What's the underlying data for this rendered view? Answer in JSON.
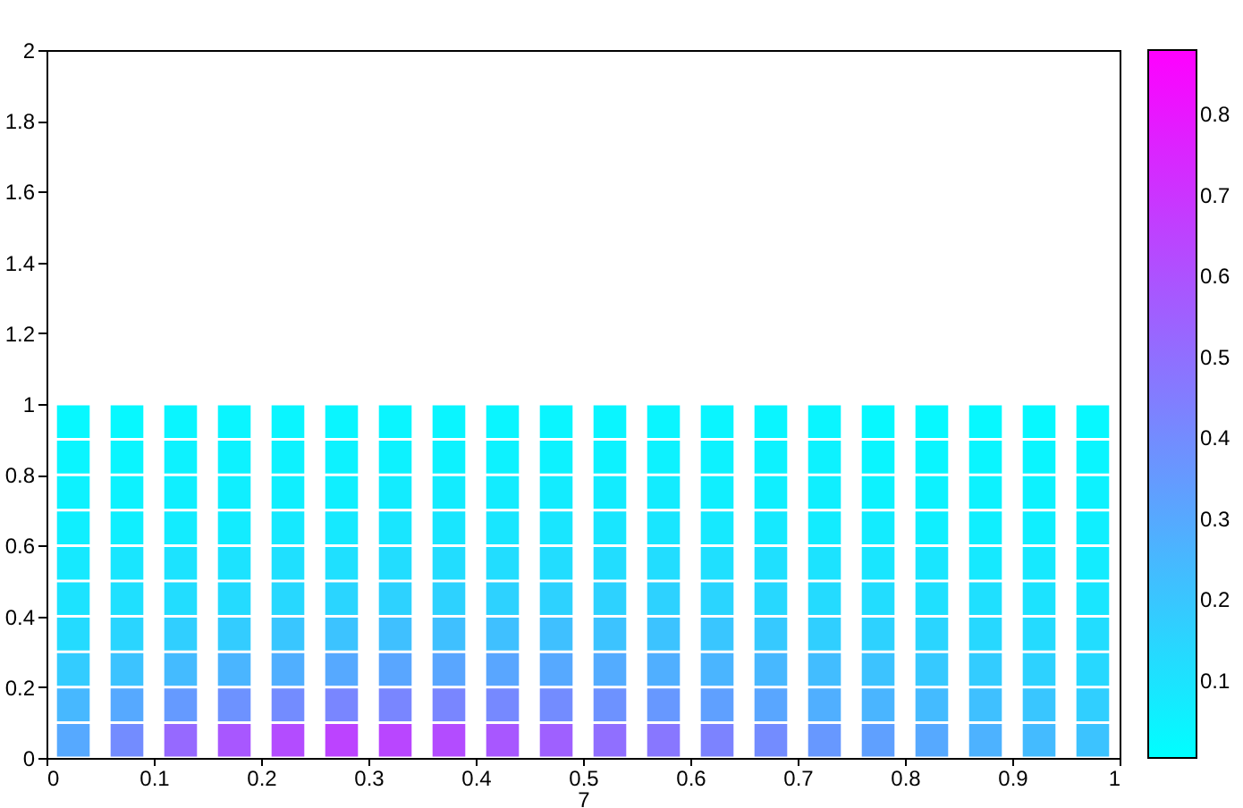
{
  "chart_data": {
    "type": "scatter",
    "xlabel": "7",
    "marker": "square",
    "x": [
      0.025,
      0.075,
      0.125,
      0.175,
      0.225,
      0.275,
      0.325,
      0.375,
      0.425,
      0.475,
      0.525,
      0.575,
      0.625,
      0.675,
      0.725,
      0.775,
      0.825,
      0.875,
      0.925,
      0.975,
      0.025,
      0.075,
      0.125,
      0.175,
      0.225,
      0.275,
      0.325,
      0.375,
      0.425,
      0.475,
      0.525,
      0.575,
      0.625,
      0.675,
      0.725,
      0.775,
      0.825,
      0.875,
      0.925,
      0.975,
      0.025,
      0.075,
      0.125,
      0.175,
      0.225,
      0.275,
      0.325,
      0.375,
      0.425,
      0.475,
      0.525,
      0.575,
      0.625,
      0.675,
      0.725,
      0.775,
      0.825,
      0.875,
      0.925,
      0.975,
      0.025,
      0.075,
      0.125,
      0.175,
      0.225,
      0.275,
      0.325,
      0.375,
      0.425,
      0.475,
      0.525,
      0.575,
      0.625,
      0.675,
      0.725,
      0.775,
      0.825,
      0.875,
      0.925,
      0.975,
      0.025,
      0.075,
      0.125,
      0.175,
      0.225,
      0.275,
      0.325,
      0.375,
      0.425,
      0.475,
      0.525,
      0.575,
      0.625,
      0.675,
      0.725,
      0.775,
      0.825,
      0.875,
      0.925,
      0.975,
      0.025,
      0.075,
      0.125,
      0.175,
      0.225,
      0.275,
      0.325,
      0.375,
      0.425,
      0.475,
      0.525,
      0.575,
      0.625,
      0.675,
      0.725,
      0.775,
      0.825,
      0.875,
      0.925,
      0.975,
      0.025,
      0.075,
      0.125,
      0.175,
      0.225,
      0.275,
      0.325,
      0.375,
      0.425,
      0.475,
      0.525,
      0.575,
      0.625,
      0.675,
      0.725,
      0.775,
      0.825,
      0.875,
      0.925,
      0.975,
      0.025,
      0.075,
      0.125,
      0.175,
      0.225,
      0.275,
      0.325,
      0.375,
      0.425,
      0.475,
      0.525,
      0.575,
      0.625,
      0.675,
      0.725,
      0.775,
      0.825,
      0.875,
      0.925,
      0.975,
      0.025,
      0.075,
      0.125,
      0.175,
      0.225,
      0.275,
      0.325,
      0.375,
      0.425,
      0.475,
      0.525,
      0.575,
      0.625,
      0.675,
      0.725,
      0.775,
      0.825,
      0.875,
      0.925,
      0.975,
      0.025,
      0.075,
      0.125,
      0.175,
      0.225,
      0.275,
      0.325,
      0.375,
      0.425,
      0.475,
      0.525,
      0.575,
      0.625,
      0.675,
      0.725,
      0.775,
      0.825,
      0.875,
      0.925,
      0.975
    ],
    "values": [
      0.05,
      0.05,
      0.05,
      0.05,
      0.05,
      0.05,
      0.05,
      0.05,
      0.05,
      0.05,
      0.05,
      0.05,
      0.05,
      0.05,
      0.05,
      0.05,
      0.05,
      0.05,
      0.05,
      0.05,
      0.15,
      0.15,
      0.15,
      0.15,
      0.15,
      0.15,
      0.15,
      0.15,
      0.15,
      0.15,
      0.15,
      0.15,
      0.15,
      0.15,
      0.15,
      0.15,
      0.15,
      0.15,
      0.15,
      0.15,
      0.25,
      0.25,
      0.25,
      0.25,
      0.25,
      0.25,
      0.25,
      0.25,
      0.25,
      0.25,
      0.25,
      0.25,
      0.25,
      0.25,
      0.25,
      0.25,
      0.25,
      0.25,
      0.25,
      0.25,
      0.35,
      0.35,
      0.35,
      0.35,
      0.35,
      0.35,
      0.35,
      0.35,
      0.35,
      0.35,
      0.35,
      0.35,
      0.35,
      0.35,
      0.35,
      0.35,
      0.35,
      0.35,
      0.35,
      0.35,
      0.45,
      0.45,
      0.45,
      0.45,
      0.45,
      0.45,
      0.45,
      0.45,
      0.45,
      0.45,
      0.45,
      0.45,
      0.45,
      0.45,
      0.45,
      0.45,
      0.45,
      0.45,
      0.45,
      0.45,
      0.55,
      0.55,
      0.55,
      0.55,
      0.55,
      0.55,
      0.55,
      0.55,
      0.55,
      0.55,
      0.55,
      0.55,
      0.55,
      0.55,
      0.55,
      0.55,
      0.55,
      0.55,
      0.55,
      0.55,
      0.65,
      0.65,
      0.65,
      0.65,
      0.65,
      0.65,
      0.65,
      0.65,
      0.65,
      0.65,
      0.65,
      0.65,
      0.65,
      0.65,
      0.65,
      0.65,
      0.65,
      0.65,
      0.65,
      0.65,
      0.75,
      0.75,
      0.75,
      0.75,
      0.75,
      0.75,
      0.75,
      0.75,
      0.75,
      0.75,
      0.75,
      0.75,
      0.75,
      0.75,
      0.75,
      0.75,
      0.75,
      0.75,
      0.75,
      0.75,
      0.85,
      0.85,
      0.85,
      0.85,
      0.85,
      0.85,
      0.85,
      0.85,
      0.85,
      0.85,
      0.85,
      0.85,
      0.85,
      0.85,
      0.85,
      0.85,
      0.85,
      0.85,
      0.85,
      0.85,
      0.95,
      0.95,
      0.95,
      0.95,
      0.95,
      0.95,
      0.95,
      0.95,
      0.95,
      0.95,
      0.95,
      0.95,
      0.95,
      0.95,
      0.95,
      0.95,
      0.95,
      0.95,
      0.95,
      0.95
    ],
    "cvalues": [
      0.3,
      0.4,
      0.52,
      0.58,
      0.62,
      0.65,
      0.64,
      0.62,
      0.58,
      0.55,
      0.5,
      0.47,
      0.43,
      0.4,
      0.36,
      0.33,
      0.3,
      0.27,
      0.24,
      0.21,
      0.25,
      0.3,
      0.35,
      0.38,
      0.4,
      0.42,
      0.42,
      0.42,
      0.41,
      0.4,
      0.38,
      0.36,
      0.33,
      0.31,
      0.28,
      0.26,
      0.24,
      0.22,
      0.2,
      0.17,
      0.18,
      0.21,
      0.24,
      0.26,
      0.28,
      0.3,
      0.31,
      0.31,
      0.31,
      0.3,
      0.29,
      0.28,
      0.26,
      0.25,
      0.23,
      0.21,
      0.19,
      0.18,
      0.16,
      0.14,
      0.13,
      0.15,
      0.17,
      0.18,
      0.2,
      0.21,
      0.22,
      0.22,
      0.22,
      0.22,
      0.21,
      0.21,
      0.2,
      0.19,
      0.17,
      0.16,
      0.15,
      0.14,
      0.13,
      0.12,
      0.1,
      0.11,
      0.12,
      0.13,
      0.14,
      0.15,
      0.16,
      0.16,
      0.16,
      0.16,
      0.16,
      0.16,
      0.15,
      0.14,
      0.13,
      0.12,
      0.11,
      0.11,
      0.1,
      0.09,
      0.08,
      0.09,
      0.1,
      0.1,
      0.11,
      0.11,
      0.12,
      0.12,
      0.12,
      0.12,
      0.12,
      0.12,
      0.11,
      0.11,
      0.1,
      0.09,
      0.09,
      0.08,
      0.08,
      0.07,
      0.06,
      0.06,
      0.07,
      0.07,
      0.08,
      0.08,
      0.09,
      0.09,
      0.09,
      0.09,
      0.09,
      0.09,
      0.08,
      0.08,
      0.07,
      0.07,
      0.06,
      0.06,
      0.06,
      0.06,
      0.05,
      0.05,
      0.06,
      0.06,
      0.06,
      0.06,
      0.07,
      0.07,
      0.07,
      0.07,
      0.07,
      0.07,
      0.06,
      0.06,
      0.06,
      0.05,
      0.05,
      0.05,
      0.05,
      0.05,
      0.04,
      0.04,
      0.05,
      0.05,
      0.05,
      0.05,
      0.05,
      0.05,
      0.05,
      0.05,
      0.05,
      0.05,
      0.05,
      0.05,
      0.05,
      0.04,
      0.04,
      0.04,
      0.04,
      0.04,
      0.03,
      0.03,
      0.04,
      0.04,
      0.04,
      0.04,
      0.04,
      0.04,
      0.04,
      0.04,
      0.04,
      0.04,
      0.04,
      0.04,
      0.04,
      0.03,
      0.03,
      0.03,
      0.03,
      0.03
    ],
    "xlim": [
      0,
      1
    ],
    "xticks": [
      0,
      0.1,
      0.2,
      0.3,
      0.4,
      0.5,
      0.6,
      0.7,
      0.8,
      0.9,
      1
    ],
    "ylim": [
      0,
      2
    ],
    "yticks": [
      0,
      0.2,
      0.4,
      0.6,
      0.8,
      1,
      1.2,
      1.4,
      1.6,
      1.8,
      2
    ],
    "clim": [
      0.005,
      0.88
    ],
    "cticks": [
      0.1,
      0.2,
      0.3,
      0.4,
      0.5,
      0.6,
      0.7,
      0.8
    ]
  }
}
